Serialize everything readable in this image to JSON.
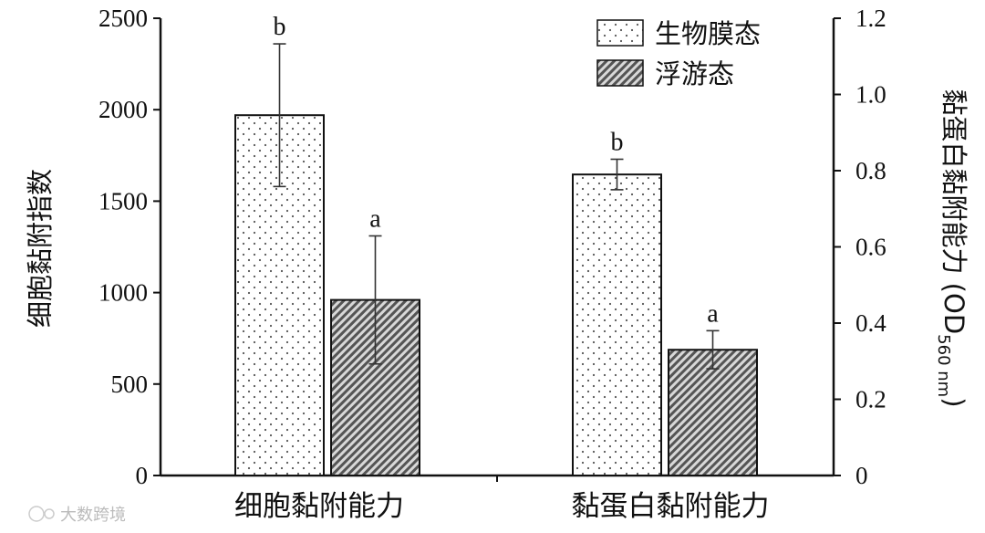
{
  "chart_data": {
    "type": "bar",
    "categories": [
      "细胞黏附能力",
      "黏蛋白黏附能力"
    ],
    "series": [
      {
        "name": "生物膜态",
        "pattern": "dots"
      },
      {
        "name": "浮游态",
        "pattern": "hatch"
      }
    ],
    "values_left": {
      "category": "细胞黏附能力",
      "values": [
        1970,
        960
      ],
      "errors": [
        390,
        350
      ],
      "labels": [
        "b",
        "a"
      ]
    },
    "values_right": {
      "category": "黏蛋白黏附能力",
      "values": [
        0.79,
        0.33
      ],
      "errors": [
        0.04,
        0.05
      ],
      "labels": [
        "b",
        "a"
      ]
    },
    "ylabel_left": "细胞黏附指数",
    "ylabel_right_main": "黏蛋白黏附能力 (OD",
    "ylabel_right_sub": "560 nm",
    "ylabel_right_close": ")",
    "ylim_left": [
      0,
      2500
    ],
    "yticks_left": [
      "0",
      "500",
      "1000",
      "1500",
      "2000",
      "2500"
    ],
    "ylim_right": [
      0,
      1.2
    ],
    "yticks_right": [
      "0",
      "0.2",
      "0.4",
      "0.6",
      "0.8",
      "1.0",
      "1.2"
    ],
    "legend": {
      "placement": "top-right",
      "entries": [
        "生物膜态",
        "浮游态"
      ]
    },
    "grid": false
  },
  "watermark": "大数跨境",
  "colors": {
    "axis": "#111111",
    "bar_fill": "#ffffff",
    "pattern": "#444444"
  }
}
